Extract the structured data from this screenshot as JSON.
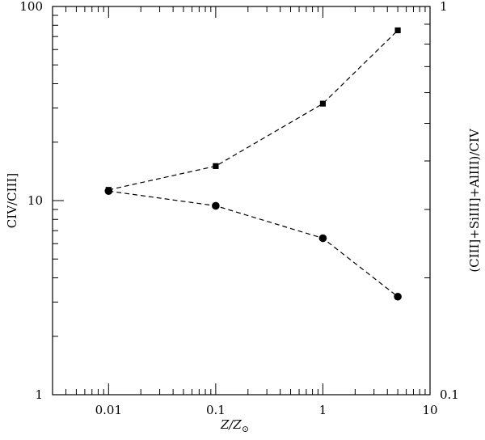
{
  "chart_data": {
    "type": "line",
    "x_scale": "log",
    "xlim": [
      0.003,
      10
    ],
    "xlabel": "Z/Z",
    "xlabel_subscript": "⊙",
    "ylabel_left": "CIV/CIII]",
    "ylabel_right": "(CIII]+SiIII]+AlIII)/CIV",
    "ylim_left": [
      1,
      100
    ],
    "ylim_right": [
      0.1,
      1
    ],
    "y_scale_left": "log",
    "y_scale_right": "log",
    "x_ticks": [
      {
        "value": 0.01,
        "label": "0.01"
      },
      {
        "value": 0.1,
        "label": "0.1"
      },
      {
        "value": 1,
        "label": "1"
      },
      {
        "value": 10,
        "label": "10"
      }
    ],
    "y_ticks_left": [
      {
        "value": 1,
        "label": "1"
      },
      {
        "value": 10,
        "label": "10"
      },
      {
        "value": 100,
        "label": "100"
      }
    ],
    "y_ticks_right": [
      {
        "value": 0.1,
        "label": "0.1"
      },
      {
        "value": 1,
        "label": "1"
      }
    ],
    "grid": false,
    "series": [
      {
        "axis": "left",
        "marker": "circle",
        "line_style": "dashed",
        "x": [
          0.01,
          0.1,
          1,
          5
        ],
        "y": [
          11.2,
          9.4,
          6.4,
          3.2
        ]
      },
      {
        "axis": "right",
        "marker": "square",
        "line_style": "dashed",
        "x": [
          0.01,
          0.1,
          1,
          5
        ],
        "y": [
          0.337,
          0.388,
          0.562,
          0.868
        ]
      }
    ]
  }
}
